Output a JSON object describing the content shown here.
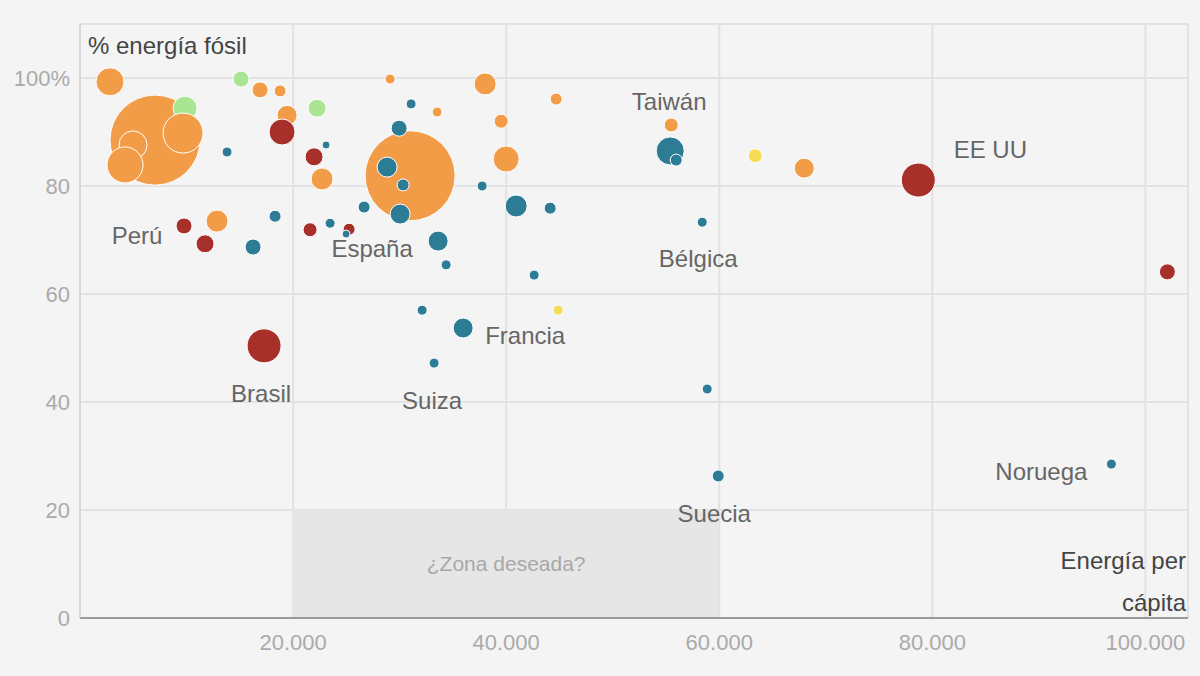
{
  "chart_data": {
    "type": "scatter",
    "x_label": "Energía per cápita",
    "y_label": "% energía fósil",
    "x": [
      7042,
      30986,
      2817,
      9859,
      9671,
      4977,
      4225,
      13803,
      15117,
      16901,
      18779,
      19437,
      18967,
      22254,
      21972,
      23099,
      22723,
      29108,
      38028,
      31080,
      33521,
      29953,
      28826,
      30329,
      30047,
      39531,
      40000,
      44695,
      37746,
      40939,
      44131,
      26667,
      23474,
      21596,
      25258,
      24977,
      33615,
      34366,
      42629,
      32113,
      35962,
      44883,
      33239,
      17277,
      18310,
      16244,
      9765,
      11737,
      12864,
      55493,
      55399,
      55962,
      63380,
      67981,
      78685,
      58404,
      58873,
      59906,
      96808,
      102066
    ],
    "values": [
      88.5,
      81.9,
      99.3,
      94.4,
      89.8,
      87.6,
      83.9,
      86.3,
      99.8,
      97.8,
      97.6,
      93.1,
      90,
      94.4,
      85.4,
      87.6,
      81.3,
      99.8,
      98.9,
      95.2,
      93.7,
      90.7,
      83.5,
      80.2,
      74.8,
      92,
      85,
      96.1,
      80,
      76.3,
      75.9,
      76.1,
      73.1,
      71.9,
      72,
      71.1,
      69.8,
      65.4,
      63.5,
      57,
      53.7,
      57,
      47.2,
      50.4,
      74.4,
      68.7,
      72.6,
      69.3,
      73.5,
      91.3,
      86.5,
      84.8,
      85.6,
      83.3,
      81.1,
      73.3,
      42.4,
      26.3,
      28.5,
      64.1
    ],
    "sizes": [
      45,
      45,
      14,
      12,
      20,
      14,
      18,
      5,
      8,
      8,
      6,
      10,
      13,
      9,
      9,
      4,
      11,
      5,
      11,
      5,
      5,
      8,
      10,
      6,
      10,
      7,
      13,
      6,
      5,
      11,
      6,
      6,
      5,
      7,
      6,
      4,
      10,
      5,
      5,
      5,
      10,
      5,
      5,
      17,
      6,
      8,
      8,
      9,
      11,
      7,
      14,
      6,
      7,
      10,
      17,
      5,
      5,
      6,
      5,
      8
    ],
    "colors": [
      "#f29c48",
      "#f29c48",
      "#f29c48",
      "#a9e592",
      "#f29c48",
      "#f29c48",
      "#f29c48",
      "#2c7c95",
      "#a9e592",
      "#f29c48",
      "#f29c48",
      "#f29c48",
      "#a8302a",
      "#a9e592",
      "#a8302a",
      "#2c7c95",
      "#f29c48",
      "#f29c48",
      "#f29c48",
      "#2c7c95",
      "#f29c48",
      "#2c7c95",
      "#2c7c95",
      "#2c7c95",
      "#2c7c95",
      "#f29c48",
      "#f29c48",
      "#f29c48",
      "#2c7c95",
      "#2c7c95",
      "#2c7c95",
      "#2c7c95",
      "#2c7c95",
      "#a8302a",
      "#a8302a",
      "#2c7c95",
      "#2c7c95",
      "#2c7c95",
      "#2c7c95",
      "#2c7c95",
      "#2c7c95",
      "#f6dc55",
      "#2c7c95",
      "#a8302a",
      "#2c7c95",
      "#2c7c95",
      "#a8302a",
      "#a8302a",
      "#f29c48",
      "#f29c48",
      "#2c7c95",
      "#2c7c95",
      "#f6dc55",
      "#f29c48",
      "#a8302a",
      "#2c7c95",
      "#2c7c95",
      "#2c7c95",
      "#2c7c95",
      "#a8302a"
    ],
    "xlim": [
      0,
      104000
    ],
    "ylim": [
      0,
      110
    ],
    "xticks": [
      {
        "value": 20000,
        "label": "20.000"
      },
      {
        "value": 40000,
        "label": "40.000"
      },
      {
        "value": 60000,
        "label": "60.000"
      },
      {
        "value": 80000,
        "label": "80.000"
      },
      {
        "value": 100000,
        "label": "100.000"
      }
    ],
    "yticks": [
      0,
      20,
      40,
      60,
      80,
      {
        "value": 100,
        "label": "100%"
      }
    ],
    "grid": true,
    "annotations": [
      {
        "text": "Perú",
        "x": 5352,
        "y": 70.9
      },
      {
        "text": "España",
        "x": 27418,
        "y": 68.5
      },
      {
        "text": "Brasil",
        "x": 16995,
        "y": 41.5
      },
      {
        "text": "Suiza",
        "x": 33052,
        "y": 40.2
      },
      {
        "text": "Francia",
        "x": 41784,
        "y": 52.4
      },
      {
        "text": "Taiwán",
        "x": 55305,
        "y": 95.7
      },
      {
        "text": "Bélgica",
        "x": 58028,
        "y": 66.5
      },
      {
        "text": "EE UU",
        "x": 85446,
        "y": 86.7
      },
      {
        "text": "Noruega",
        "x": 90235,
        "y": 27.2
      },
      {
        "text": "Suecia",
        "x": 59531,
        "y": 19.4
      }
    ],
    "zone": {
      "label": "¿Zona deseada?",
      "x": [
        20000,
        60000
      ],
      "y": [
        0,
        20
      ]
    }
  }
}
